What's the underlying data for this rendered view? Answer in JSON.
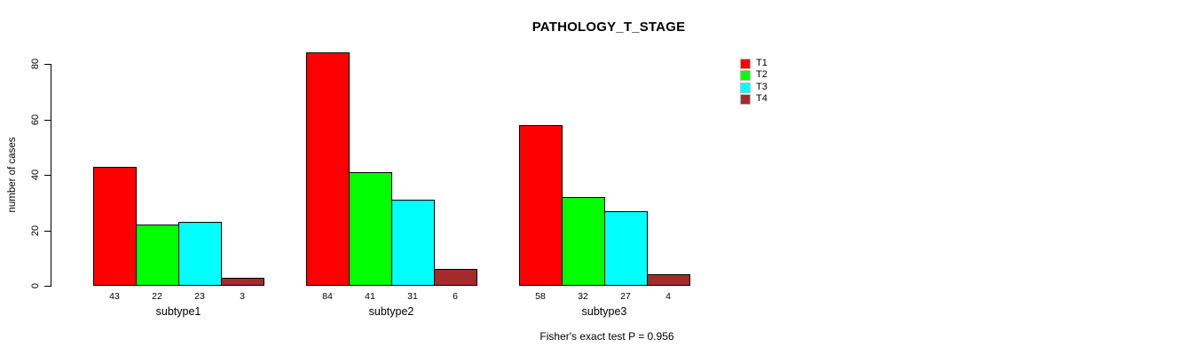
{
  "chart_data": {
    "type": "bar",
    "title": "PATHOLOGY_T_STAGE",
    "categories": [
      "subtype1",
      "subtype2",
      "subtype3"
    ],
    "series": [
      {
        "name": "T1",
        "color": "#ff0000",
        "values": [
          43,
          84,
          58
        ]
      },
      {
        "name": "T2",
        "color": "#00ff00",
        "values": [
          22,
          41,
          32
        ]
      },
      {
        "name": "T3",
        "color": "#00ffff",
        "values": [
          23,
          31,
          27
        ]
      },
      {
        "name": "T4",
        "color": "#a52a2a",
        "values": [
          3,
          6,
          4
        ]
      }
    ],
    "xlabel": "",
    "ylabel": "number of cases",
    "yticks": [
      0,
      20,
      40,
      60,
      80
    ],
    "ylim": [
      0,
      80
    ],
    "grid": false,
    "legend_position": "top-right",
    "bar_value_labels": true,
    "annotation": "Fisher's exact test P = 0.956"
  }
}
